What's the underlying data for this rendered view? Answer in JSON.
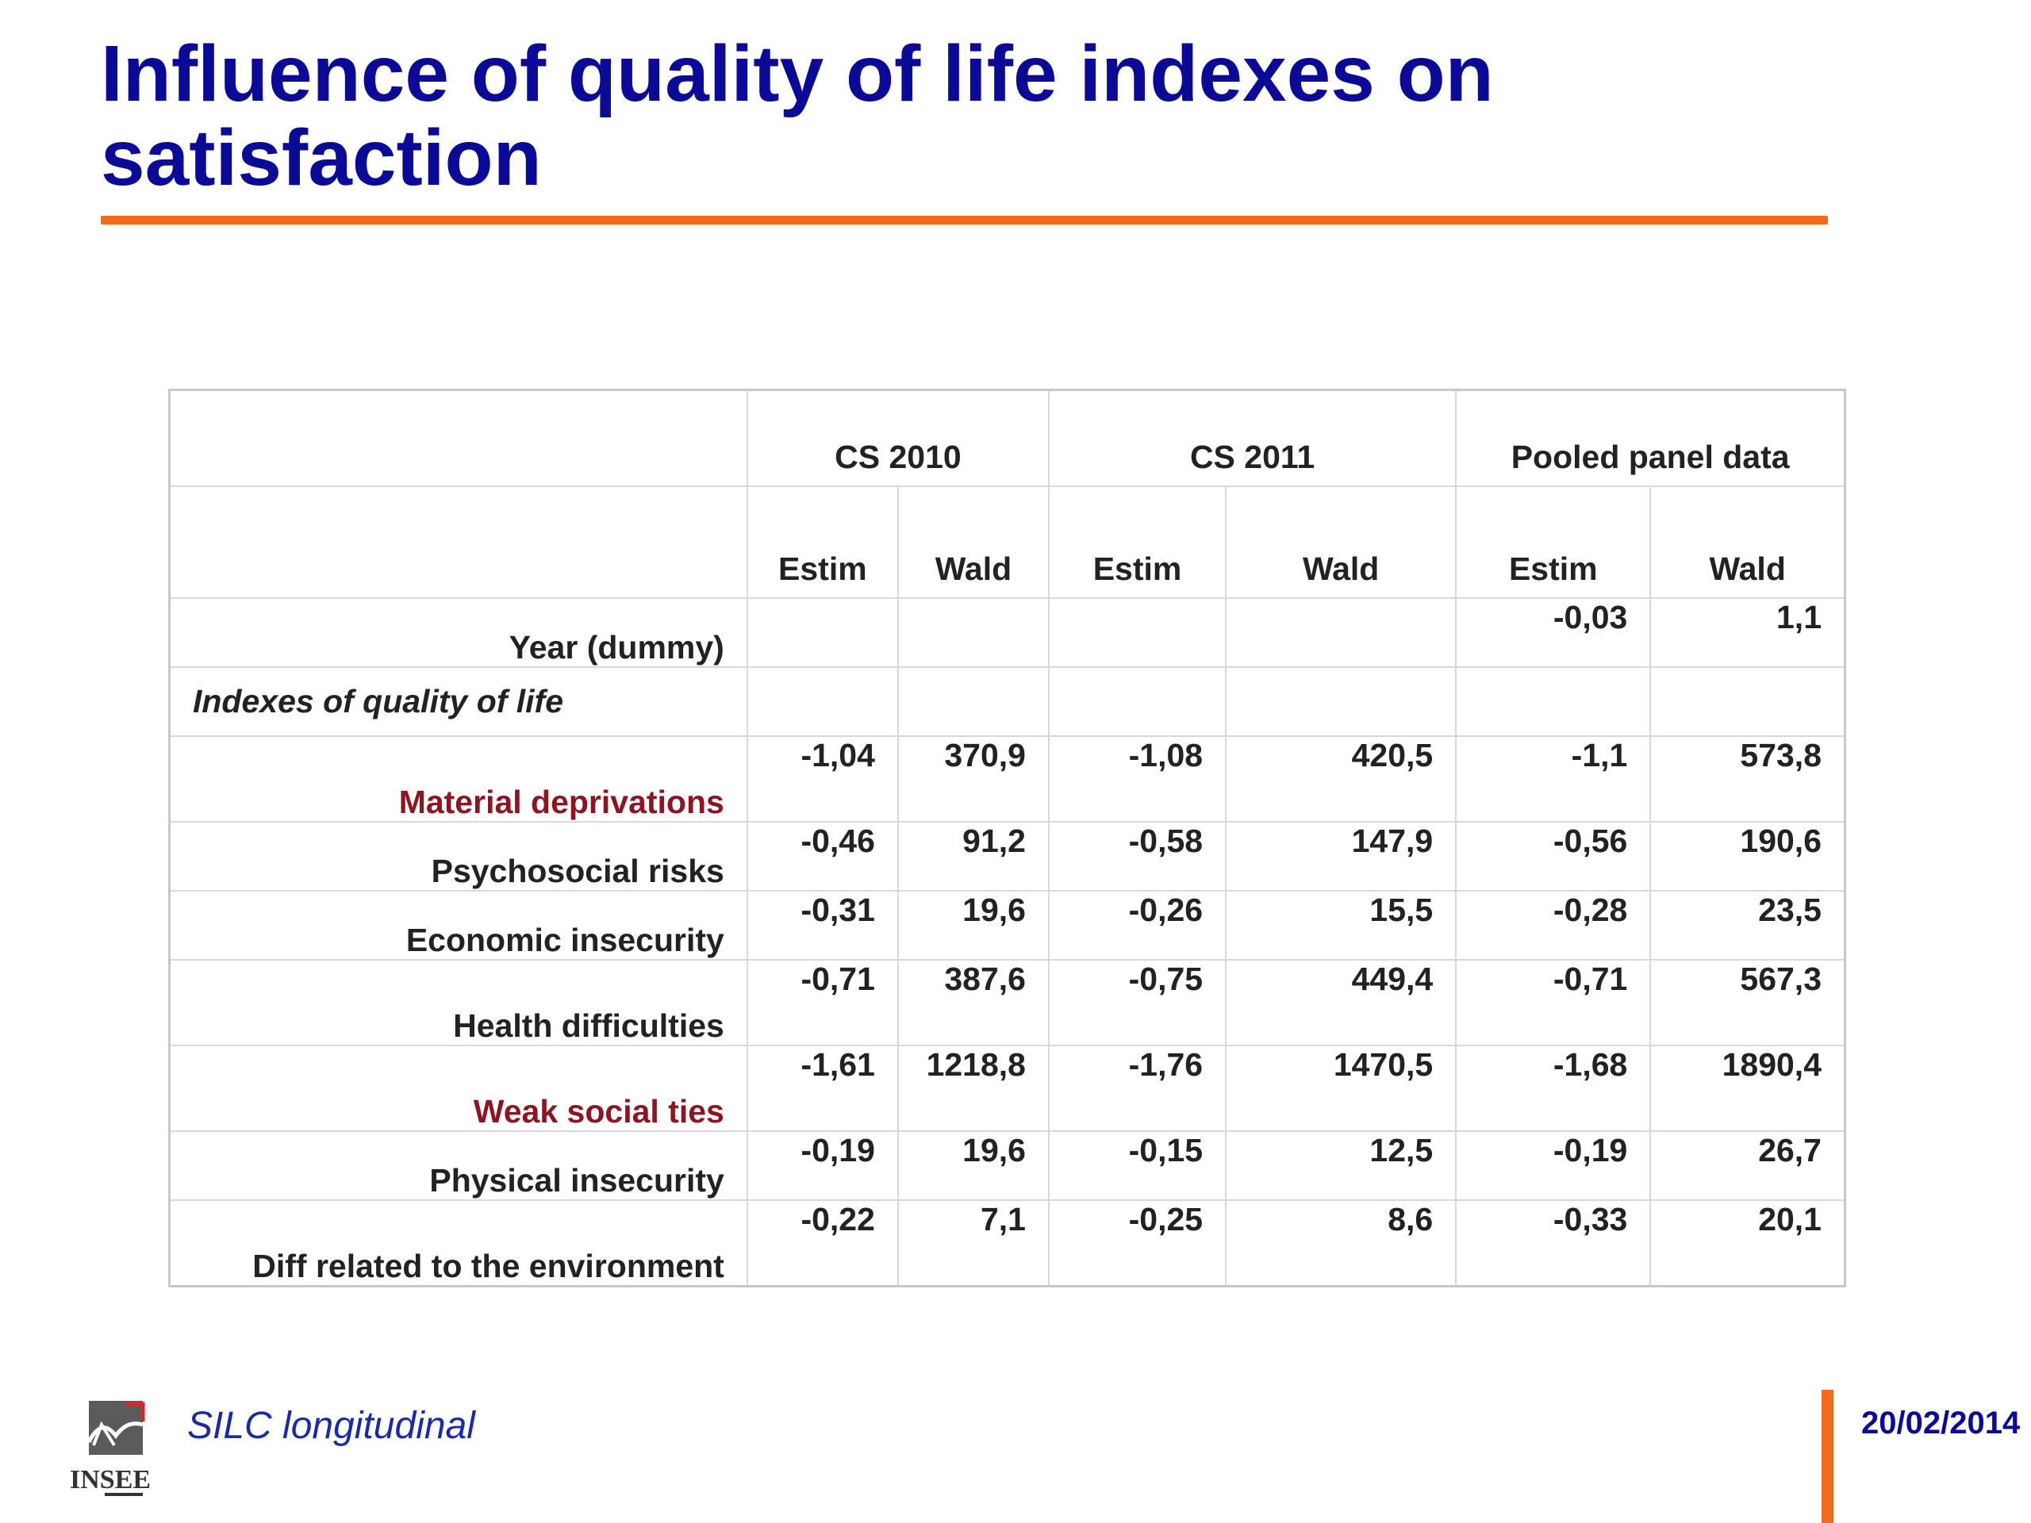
{
  "slide": {
    "title": "Influence of quality of life indexes on satisfaction",
    "footer_text": "SILC longitudinal",
    "footer_date": "20/02/2014",
    "logo_text": "INSEE",
    "colors": {
      "title": "#0a0a96",
      "accent": "#f26b1d",
      "highlight": "#8b1520"
    }
  },
  "table": {
    "groups": [
      "CS 2010",
      "CS 2011",
      "Pooled panel data"
    ],
    "subheaders": [
      "Estim",
      "Wald",
      "Estim",
      "Wald",
      "Estim",
      "Wald"
    ],
    "rows": [
      {
        "label": "Year (dummy)",
        "values": [
          "",
          "",
          "",
          "",
          "-0,03",
          "1,1"
        ]
      },
      {
        "label": "Indexes of quality of life",
        "values": [
          "",
          "",
          "",
          "",
          "",
          ""
        ]
      },
      {
        "label": "Material deprivations",
        "values": [
          "-1,04",
          "370,9",
          "-1,08",
          "420,5",
          "-1,1",
          "573,8"
        ]
      },
      {
        "label": "Psychosocial risks",
        "values": [
          "-0,46",
          "91,2",
          "-0,58",
          "147,9",
          "-0,56",
          "190,6"
        ]
      },
      {
        "label": "Economic insecurity",
        "values": [
          "-0,31",
          "19,6",
          "-0,26",
          "15,5",
          "-0,28",
          "23,5"
        ]
      },
      {
        "label": "Health difficulties",
        "values": [
          "-0,71",
          "387,6",
          "-0,75",
          "449,4",
          "-0,71",
          "567,3"
        ]
      },
      {
        "label": "Weak social ties",
        "values": [
          "-1,61",
          "1218,8",
          "-1,76",
          "1470,5",
          "-1,68",
          "1890,4"
        ]
      },
      {
        "label": "Physical insecurity",
        "values": [
          "-0,19",
          "19,6",
          "-0,15",
          "12,5",
          "-0,19",
          "26,7"
        ]
      },
      {
        "label": "Diff related to the environment",
        "values": [
          "-0,22",
          "7,1",
          "-0,25",
          "8,6",
          "-0,33",
          "20,1"
        ]
      }
    ]
  }
}
